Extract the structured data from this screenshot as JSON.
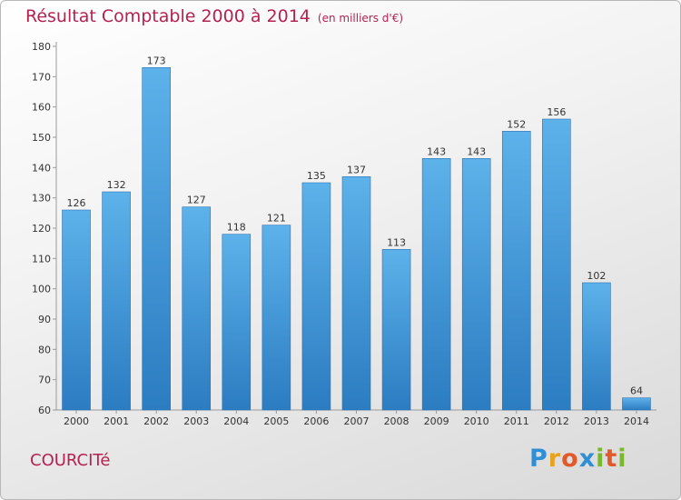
{
  "header": {
    "title": "Résultat Comptable 2000 à 2014",
    "unit": "(en milliers d'€)"
  },
  "footer": {
    "commune": "COURCITé",
    "logo_letters": [
      "P",
      "r",
      "o",
      "x",
      "i",
      "t",
      "i"
    ],
    "logo_colors": [
      "#2f8fd6",
      "#e8a21d",
      "#e2592a",
      "#2f8fd6",
      "#79b82c",
      "#e2592a",
      "#79b82c"
    ]
  },
  "colors": {
    "accent": "#b5224f",
    "bar_top": "#5db2ea",
    "bar_bottom": "#2b7cc1"
  },
  "chart_data": {
    "type": "bar",
    "title": "Résultat Comptable 2000 à 2014",
    "ylabel": "",
    "xlabel": "",
    "categories": [
      "2000",
      "2001",
      "2002",
      "2003",
      "2004",
      "2005",
      "2006",
      "2007",
      "2008",
      "2009",
      "2010",
      "2011",
      "2012",
      "2013",
      "2014"
    ],
    "values": [
      126,
      132,
      173,
      127,
      118,
      121,
      135,
      137,
      113,
      143,
      143,
      152,
      156,
      102,
      64
    ],
    "ylim": [
      60,
      180
    ],
    "yticks": [
      60,
      70,
      80,
      90,
      100,
      110,
      120,
      130,
      140,
      150,
      160,
      170,
      180
    ],
    "grid": false,
    "data_labels": true
  }
}
